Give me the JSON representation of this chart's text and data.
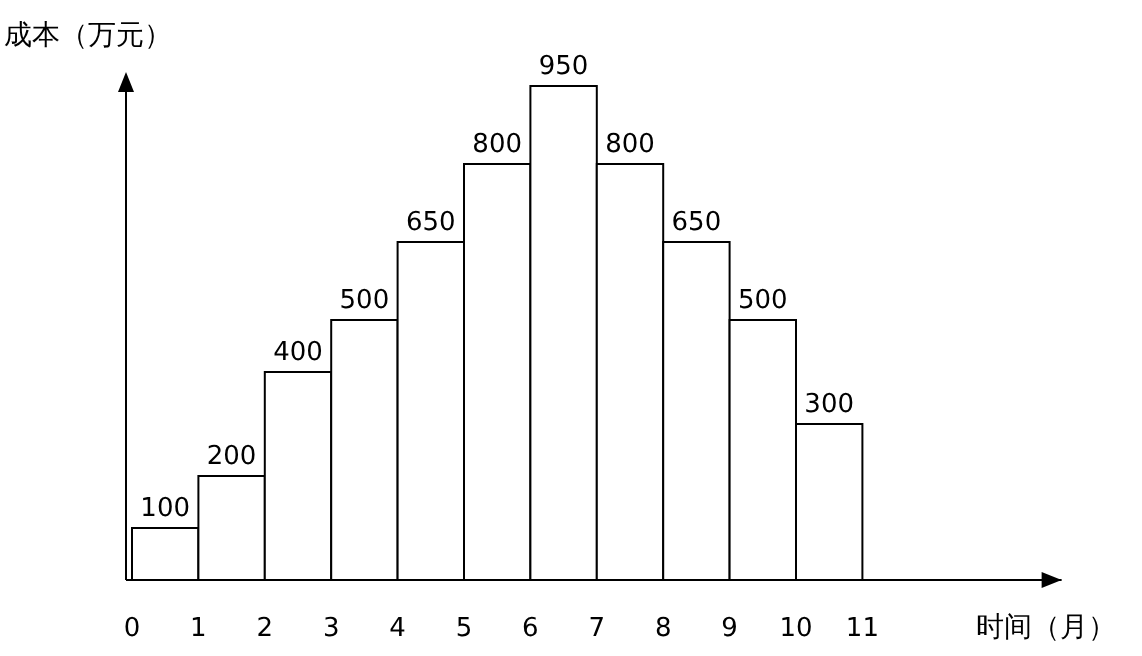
{
  "chart_data": {
    "type": "bar",
    "xlabel": "时间（月）",
    "ylabel": "成本（万元）",
    "x": [
      0.5,
      1.5,
      2.5,
      3.5,
      4.5,
      5.5,
      6.5,
      7.5,
      8.5,
      9.5,
      10.5
    ],
    "values": [
      100,
      200,
      400,
      500,
      650,
      800,
      950,
      800,
      650,
      500,
      300
    ],
    "color": "#ffffff",
    "data_labels": true,
    "tick_labels": "x",
    "xlim": [
      0,
      14
    ],
    "xticks": [
      0,
      1,
      2,
      3,
      4,
      5,
      6,
      7,
      8,
      9,
      10,
      11
    ]
  }
}
